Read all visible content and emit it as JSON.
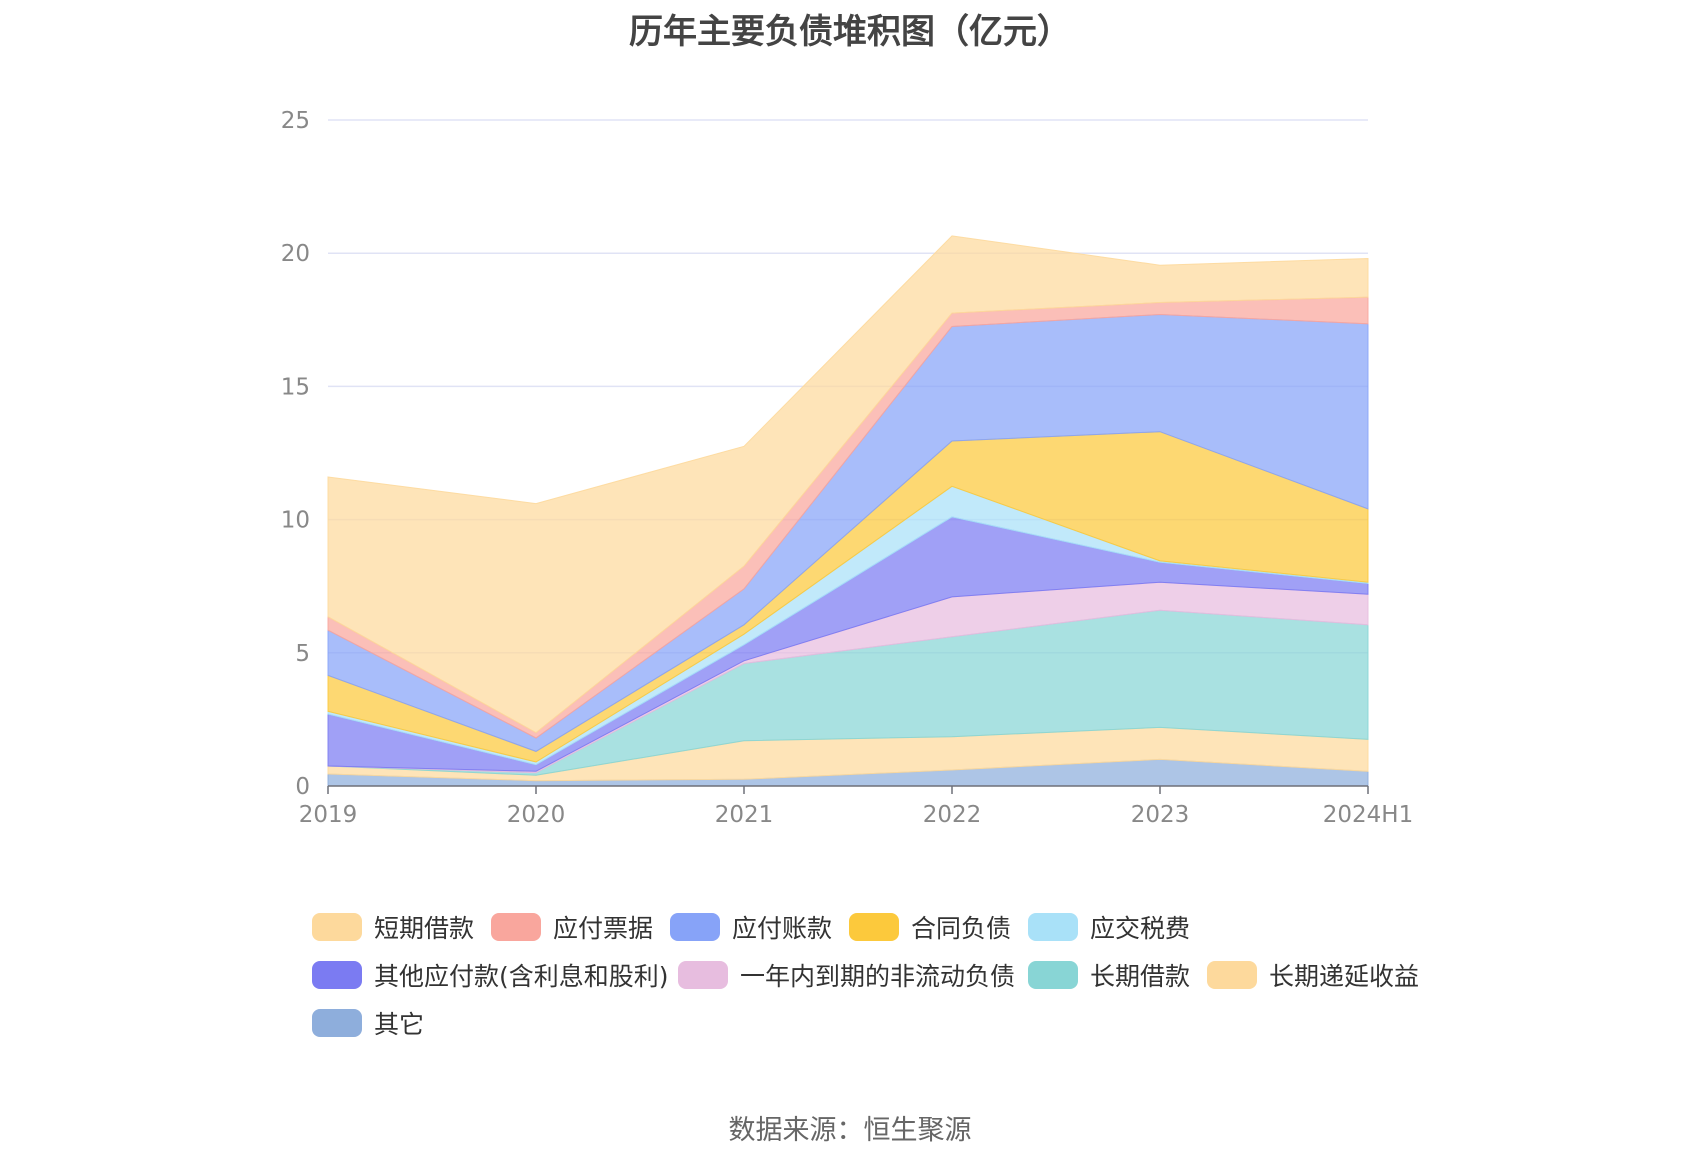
{
  "chart_data": {
    "type": "area",
    "stacked": true,
    "title": "历年主要负债堆积图（亿元）",
    "x": [
      "2019",
      "2020",
      "2021",
      "2022",
      "2023",
      "2024H1"
    ],
    "ylim": [
      0,
      25
    ],
    "yticks": [
      0,
      5,
      10,
      15,
      20,
      25
    ],
    "grid": true,
    "legend_position": "bottom",
    "series": [
      {
        "name": "其它",
        "color": "#8eaedc",
        "values": [
          0.45,
          0.2,
          0.25,
          0.6,
          1.0,
          0.55
        ]
      },
      {
        "name": "长期递延收益",
        "color": "#fdd99c",
        "values": [
          0.3,
          0.2,
          1.45,
          1.25,
          1.2,
          1.2
        ]
      },
      {
        "name": "长期借款",
        "color": "#88d5d5",
        "values": [
          0.0,
          0.1,
          2.9,
          3.75,
          4.4,
          4.3
        ]
      },
      {
        "name": "一年内到期的非流动负债",
        "color": "#e7bddf",
        "values": [
          0.0,
          0.05,
          0.1,
          1.5,
          1.05,
          1.15
        ]
      },
      {
        "name": "其他应付款(含利息和股利)",
        "color": "#7b7bf2",
        "values": [
          1.95,
          0.25,
          0.6,
          3.0,
          0.75,
          0.4
        ]
      },
      {
        "name": "应交税费",
        "color": "#a9e1f8",
        "values": [
          0.1,
          0.1,
          0.4,
          1.15,
          0.05,
          0.05
        ]
      },
      {
        "name": "合同负债",
        "color": "#fcc93c",
        "values": [
          1.35,
          0.4,
          0.35,
          1.7,
          4.85,
          2.75
        ]
      },
      {
        "name": "应付账款",
        "color": "#87a3f8",
        "values": [
          1.7,
          0.5,
          1.35,
          4.3,
          4.4,
          6.95
        ]
      },
      {
        "name": "应付票据",
        "color": "#f9a69d",
        "values": [
          0.5,
          0.2,
          0.85,
          0.5,
          0.45,
          1.0
        ]
      },
      {
        "name": "短期借款",
        "color": "#fdd99c",
        "values": [
          5.25,
          8.6,
          4.5,
          2.9,
          1.4,
          1.45
        ]
      }
    ]
  },
  "legend_items": [
    {
      "label": "短期借款",
      "color": "#fdd99c"
    },
    {
      "label": "应付票据",
      "color": "#f9a69d"
    },
    {
      "label": "应付账款",
      "color": "#87a3f8"
    },
    {
      "label": "合同负债",
      "color": "#fcc93c"
    },
    {
      "label": "应交税费",
      "color": "#a9e1f8"
    },
    {
      "label": "其他应付款(含利息和股利)",
      "color": "#7b7bf2"
    },
    {
      "label": "一年内到期的非流动负债",
      "color": "#e7bddf"
    },
    {
      "label": "长期借款",
      "color": "#88d5d5"
    },
    {
      "label": "长期递延收益",
      "color": "#fdd99c"
    },
    {
      "label": "其它",
      "color": "#8eaedc"
    }
  ],
  "source": "数据来源：恒生聚源"
}
